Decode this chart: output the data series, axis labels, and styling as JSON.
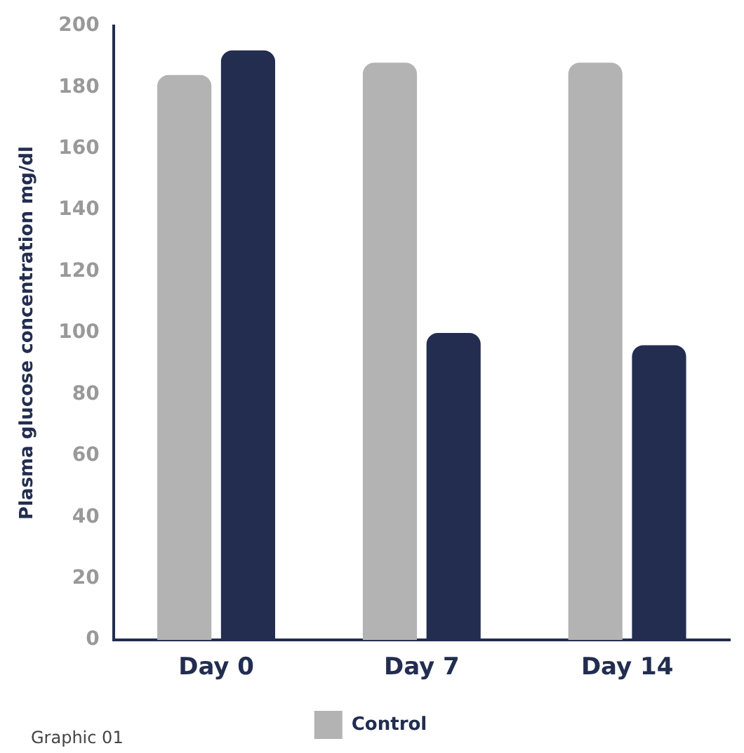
{
  "chart_data": {
    "type": "bar",
    "ylabel": "Plasma glucose concentration mg/dl",
    "categories": [
      "Day 0",
      "Day 7",
      "Day 14"
    ],
    "series": [
      {
        "name": "Control",
        "color": "#b3b3b3",
        "values": [
          184,
          188,
          188
        ]
      },
      {
        "color": "#222d50",
        "values": [
          192,
          100,
          96
        ]
      }
    ],
    "ylim": [
      0,
      200
    ],
    "yticks": [
      0,
      20,
      40,
      60,
      80,
      100,
      120,
      140,
      160,
      180,
      200
    ],
    "grid": false,
    "legend": "bottom",
    "annotations": [
      "Graphic 01"
    ]
  }
}
